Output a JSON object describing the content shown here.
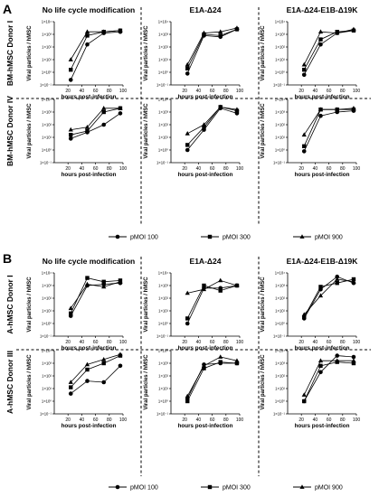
{
  "figure": {
    "sections": [
      {
        "label": "A",
        "columns": [
          "No life cycle modification",
          "E1A-Δ24",
          "E1A-Δ24-E1B-Δ19K"
        ],
        "rows": [
          "BM-hMSC Donor  I",
          "BM-hMSC Donor IV"
        ]
      },
      {
        "label": "B",
        "columns": [
          "No life cycle modification",
          "E1A-Δ24",
          "E1A-Δ24-E1B-Δ19K"
        ],
        "rows": [
          "A-hMSC Donor  I",
          "A-hMSC Donor  III"
        ]
      }
    ],
    "legend": [
      {
        "name": "pMOI 100",
        "marker": "circle"
      },
      {
        "name": "pMOI 300",
        "marker": "square"
      },
      {
        "name": "pMOI 900",
        "marker": "triangle"
      }
    ]
  },
  "chart_data": [
    {
      "type": "line",
      "section": "A",
      "row": "BM-hMSC Donor  I",
      "column": "No life cycle modification",
      "xlabel": "hours post-infection",
      "ylabel": "Viral particles / hMSC",
      "x": [
        24,
        48,
        72,
        96
      ],
      "xlim": [
        0,
        100
      ],
      "x_ticks": [
        20,
        40,
        60,
        80,
        100
      ],
      "y_ticks": [
        "1×10⁻¹",
        "1×10⁰",
        "1×10¹",
        "1×10²",
        "1×10³",
        "1×10⁴"
      ],
      "ylim_log10": [
        -1,
        4
      ],
      "series": [
        {
          "name": "pMOI 100",
          "values": [
            -0.6,
            2.2,
            3.1,
            3.2
          ]
        },
        {
          "name": "pMOI 300",
          "values": [
            0.2,
            2.9,
            3.2,
            3.3
          ]
        },
        {
          "name": "pMOI 900",
          "values": [
            1.0,
            3.2,
            3.2,
            3.3
          ]
        }
      ]
    },
    {
      "type": "line",
      "section": "A",
      "row": "BM-hMSC Donor  I",
      "column": "E1A-Δ24",
      "xlabel": "hours post-infection",
      "ylabel": "Viral particles / hMSC",
      "x": [
        24,
        48,
        72,
        96
      ],
      "xlim": [
        0,
        100
      ],
      "x_ticks": [
        20,
        40,
        60,
        80,
        100
      ],
      "y_ticks": [
        "1×10⁻¹",
        "1×10⁰",
        "1×10¹",
        "1×10²",
        "1×10³",
        "1×10⁴"
      ],
      "ylim_log10": [
        -1,
        4
      ],
      "series": [
        {
          "name": "pMOI 100",
          "values": [
            -0.1,
            2.9,
            2.8,
            3.4
          ]
        },
        {
          "name": "pMOI 300",
          "values": [
            0.3,
            3.0,
            2.9,
            3.4
          ]
        },
        {
          "name": "pMOI 900",
          "values": [
            0.6,
            3.1,
            3.2,
            3.5
          ]
        }
      ]
    },
    {
      "type": "line",
      "section": "A",
      "row": "BM-hMSC Donor  I",
      "column": "E1A-Δ24-E1B-Δ19K",
      "xlabel": "hours post-infection",
      "ylabel": "Viral particles / hMSC",
      "x": [
        24,
        48,
        72,
        96
      ],
      "xlim": [
        0,
        100
      ],
      "x_ticks": [
        20,
        40,
        60,
        80,
        100
      ],
      "y_ticks": [
        "1×10⁻¹",
        "1×10⁰",
        "1×10¹",
        "1×10²",
        "1×10³",
        "1×10⁴"
      ],
      "ylim_log10": [
        -1,
        4
      ],
      "series": [
        {
          "name": "pMOI 100",
          "values": [
            -0.2,
            2.2,
            3.1,
            3.3
          ]
        },
        {
          "name": "pMOI 300",
          "values": [
            0.2,
            2.6,
            3.2,
            3.3
          ]
        },
        {
          "name": "pMOI 900",
          "values": [
            0.6,
            3.2,
            3.1,
            3.4
          ]
        }
      ]
    },
    {
      "type": "line",
      "section": "A",
      "row": "BM-hMSC Donor IV",
      "column": "No life cycle modification",
      "xlabel": "hours post-infection",
      "ylabel": "Viral particles / hMSC",
      "x": [
        24,
        48,
        72,
        96
      ],
      "xlim": [
        0,
        100
      ],
      "x_ticks": [
        20,
        40,
        60,
        80,
        100
      ],
      "y_ticks": [
        "1×10⁻¹",
        "1×10⁰",
        "1×10¹",
        "1×10²",
        "1×10³",
        "1×10⁴"
      ],
      "ylim_log10": [
        -1,
        4
      ],
      "series": [
        {
          "name": "pMOI 100",
          "values": [
            0.9,
            1.4,
            2.0,
            2.9
          ]
        },
        {
          "name": "pMOI 300",
          "values": [
            1.2,
            1.5,
            3.0,
            3.3
          ]
        },
        {
          "name": "pMOI 900",
          "values": [
            1.6,
            1.8,
            3.3,
            3.3
          ]
        }
      ]
    },
    {
      "type": "line",
      "section": "A",
      "row": "BM-hMSC Donor IV",
      "column": "E1A-Δ24",
      "xlabel": "hours post-infection",
      "ylabel": "Viral particles / hMSC",
      "x": [
        24,
        48,
        72,
        96
      ],
      "xlim": [
        0,
        100
      ],
      "x_ticks": [
        20,
        40,
        60,
        80,
        100
      ],
      "y_ticks": [
        "1×10⁻¹",
        "1×10⁰",
        "1×10¹",
        "1×10²",
        "1×10³",
        "1×10⁴"
      ],
      "ylim_log10": [
        -1,
        4
      ],
      "series": [
        {
          "name": "pMOI 100",
          "values": [
            0.0,
            1.6,
            3.3,
            2.9
          ]
        },
        {
          "name": "pMOI 300",
          "values": [
            0.4,
            1.8,
            3.4,
            3.1
          ]
        },
        {
          "name": "pMOI 900",
          "values": [
            1.3,
            2.0,
            3.4,
            3.2
          ]
        }
      ]
    },
    {
      "type": "line",
      "section": "A",
      "row": "BM-hMSC Donor IV",
      "column": "E1A-Δ24-E1B-Δ19K",
      "xlabel": "hours post-infection",
      "ylabel": "Viral particles / hMSC",
      "x": [
        24,
        48,
        72,
        96
      ],
      "xlim": [
        0,
        100
      ],
      "x_ticks": [
        20,
        40,
        60,
        80,
        100
      ],
      "y_ticks": [
        "1×10⁻¹",
        "1×10⁰",
        "1×10¹",
        "1×10²",
        "1×10³",
        "1×10⁴"
      ],
      "ylim_log10": [
        -1,
        4
      ],
      "series": [
        {
          "name": "pMOI 100",
          "values": [
            -0.1,
            2.7,
            3.0,
            3.1
          ]
        },
        {
          "name": "pMOI 300",
          "values": [
            0.3,
            3.2,
            3.2,
            3.2
          ]
        },
        {
          "name": "pMOI 900",
          "values": [
            1.2,
            3.2,
            3.2,
            3.3
          ]
        }
      ]
    },
    {
      "type": "line",
      "section": "B",
      "row": "A-hMSC Donor  I",
      "column": "No life cycle modification",
      "xlabel": "hours post-infection",
      "ylabel": "Viral particles / hMSC",
      "x": [
        24,
        48,
        72,
        96
      ],
      "xlim": [
        0,
        100
      ],
      "x_ticks": [
        20,
        40,
        60,
        80,
        100
      ],
      "y_ticks": [
        "1×10⁻¹",
        "1×10⁰",
        "1×10¹",
        "1×10²",
        "1×10³",
        "1×10⁴"
      ],
      "ylim_log10": [
        -1,
        4
      ],
      "series": [
        {
          "name": "pMOI 100",
          "values": [
            0.6,
            3.0,
            3.1,
            3.2
          ]
        },
        {
          "name": "pMOI 300",
          "values": [
            0.8,
            3.6,
            3.3,
            3.4
          ]
        },
        {
          "name": "pMOI 900",
          "values": [
            1.2,
            3.1,
            2.9,
            3.3
          ]
        }
      ]
    },
    {
      "type": "line",
      "section": "B",
      "row": "A-hMSC Donor  I",
      "column": "E1A-Δ24",
      "xlabel": "hours post-infection",
      "ylabel": "Viral particles / hMSC",
      "x": [
        24,
        48,
        72,
        96
      ],
      "xlim": [
        0,
        100
      ],
      "x_ticks": [
        20,
        40,
        60,
        80,
        100
      ],
      "y_ticks": [
        "1×10⁻¹",
        "1×10⁰",
        "1×10¹",
        "1×10²",
        "1×10³",
        "1×10⁴"
      ],
      "ylim_log10": [
        -1,
        4
      ],
      "series": [
        {
          "name": "pMOI 100",
          "values": [
            0.0,
            2.8,
            2.8,
            3.0
          ]
        },
        {
          "name": "pMOI 300",
          "values": [
            0.4,
            3.0,
            2.6,
            3.0
          ]
        },
        {
          "name": "pMOI 900",
          "values": [
            2.4,
            2.7,
            3.4,
            3.0
          ]
        }
      ]
    },
    {
      "type": "line",
      "section": "B",
      "row": "A-hMSC Donor  I",
      "column": "E1A-Δ24-E1B-Δ19K",
      "xlabel": "hours post-infection",
      "ylabel": "Viral particles / hMSC",
      "x": [
        24,
        48,
        72,
        96
      ],
      "xlim": [
        0,
        100
      ],
      "x_ticks": [
        20,
        40,
        60,
        80,
        100
      ],
      "y_ticks": [
        "1×10⁻¹",
        "1×10⁰",
        "1×10¹",
        "1×10²",
        "1×10³",
        "1×10⁴"
      ],
      "ylim_log10": [
        -1,
        4
      ],
      "series": [
        {
          "name": "pMOI 100",
          "values": [
            0.4,
            2.7,
            3.7,
            3.2
          ]
        },
        {
          "name": "pMOI 300",
          "values": [
            0.5,
            2.9,
            3.2,
            3.5
          ]
        },
        {
          "name": "pMOI 900",
          "values": [
            0.7,
            2.2,
            3.5,
            3.3
          ]
        }
      ]
    },
    {
      "type": "line",
      "section": "B",
      "row": "A-hMSC Donor  III",
      "column": "No life cycle modification",
      "xlabel": "hours post-infection",
      "ylabel": "Viral particles / hMSC",
      "x": [
        24,
        48,
        72,
        96
      ],
      "xlim": [
        0,
        100
      ],
      "x_ticks": [
        20,
        40,
        60,
        80,
        100
      ],
      "y_ticks": [
        "1×10⁻¹",
        "1×10⁰",
        "1×10¹",
        "1×10²",
        "1×10³",
        "1×10⁴"
      ],
      "ylim_log10": [
        -1,
        4
      ],
      "series": [
        {
          "name": "pMOI 100",
          "values": [
            0.6,
            1.6,
            1.5,
            2.8
          ]
        },
        {
          "name": "pMOI 300",
          "values": [
            1.1,
            2.5,
            3.0,
            3.6
          ]
        },
        {
          "name": "pMOI 900",
          "values": [
            1.5,
            2.9,
            3.3,
            3.7
          ]
        }
      ]
    },
    {
      "type": "line",
      "section": "B",
      "row": "A-hMSC Donor  III",
      "column": "E1A-Δ24",
      "xlabel": "hours post-infection",
      "ylabel": "Viral particles / hMSC",
      "x": [
        24,
        48,
        72,
        96
      ],
      "xlim": [
        0,
        100
      ],
      "x_ticks": [
        20,
        40,
        60,
        80,
        100
      ],
      "y_ticks": [
        "1×10⁻¹",
        "1×10⁰",
        "1×10¹",
        "1×10²",
        "1×10³",
        "1×10⁴"
      ],
      "ylim_log10": [
        -1,
        4
      ],
      "series": [
        {
          "name": "pMOI 100",
          "values": [
            0.2,
            2.9,
            3.0,
            3.0
          ]
        },
        {
          "name": "pMOI 300",
          "values": [
            0.0,
            2.6,
            3.1,
            3.0
          ]
        },
        {
          "name": "pMOI 900",
          "values": [
            0.4,
            2.8,
            3.5,
            3.2
          ]
        }
      ]
    },
    {
      "type": "line",
      "section": "B",
      "row": "A-hMSC Donor  III",
      "column": "E1A-Δ24-E1B-Δ19K",
      "xlabel": "hours post-infection",
      "ylabel": "Viral particles / hMSC",
      "x": [
        24,
        48,
        72,
        96
      ],
      "xlim": [
        0,
        100
      ],
      "x_ticks": [
        20,
        40,
        60,
        80,
        100
      ],
      "y_ticks": [
        "1×10⁻¹",
        "1×10⁰",
        "1×10¹",
        "1×10²",
        "1×10³",
        "1×10⁴"
      ],
      "ylim_log10": [
        -1,
        4
      ],
      "series": [
        {
          "name": "pMOI 100",
          "values": [
            0.0,
            2.3,
            3.6,
            3.5
          ]
        },
        {
          "name": "pMOI 300",
          "values": [
            0.0,
            2.8,
            3.1,
            3.0
          ]
        },
        {
          "name": "pMOI 900",
          "values": [
            0.5,
            3.2,
            3.2,
            3.2
          ]
        }
      ]
    }
  ]
}
